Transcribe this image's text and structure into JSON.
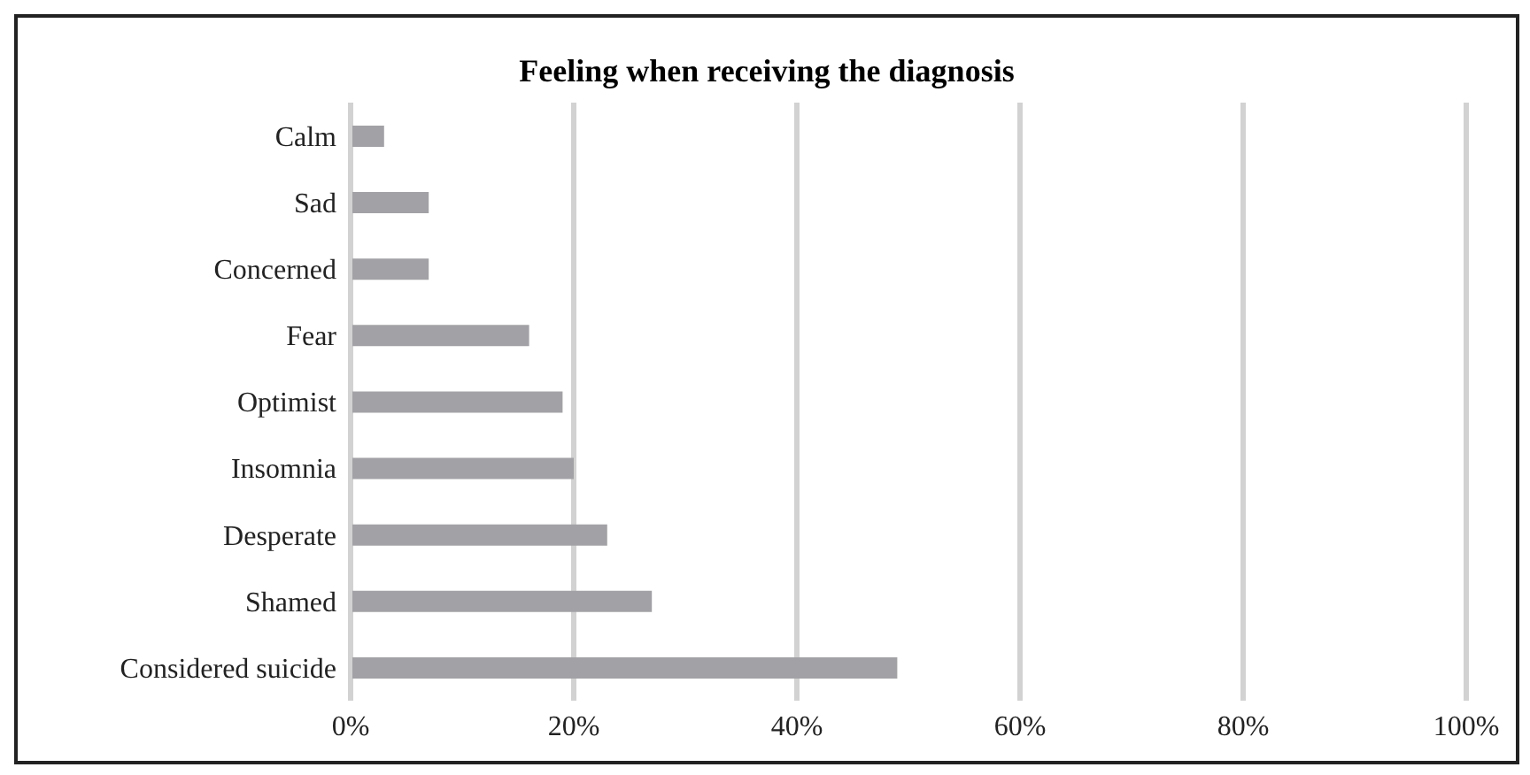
{
  "chart_data": {
    "type": "bar",
    "orientation": "horizontal",
    "title": "Feeling when receiving the diagnosis",
    "categories": [
      "Calm",
      "Sad",
      "Concerned",
      "Fear",
      "Optimist",
      "Insomnia",
      "Desperate",
      "Shamed",
      "Considered suicide"
    ],
    "values": [
      3,
      7,
      7,
      16,
      19,
      20,
      23,
      27,
      49
    ],
    "color": "#a2a2a6",
    "xlim": [
      0,
      100
    ],
    "xticks": [
      {
        "value": 0,
        "label": "0%"
      },
      {
        "value": 20,
        "label": "20%"
      },
      {
        "value": 40,
        "label": "40%"
      },
      {
        "value": 60,
        "label": "60%"
      },
      {
        "value": 80,
        "label": "80%"
      },
      {
        "value": 100,
        "label": "100%"
      }
    ],
    "grid": "x"
  }
}
